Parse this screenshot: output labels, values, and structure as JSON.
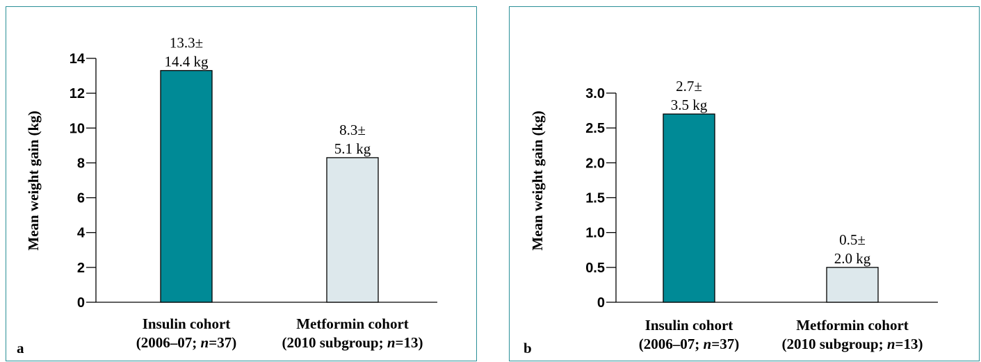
{
  "colors": {
    "frame": "#2a8f97",
    "insulin_bar": "#008a96",
    "metformin_bar": "#dde8ec",
    "axis": "#000000"
  },
  "chart_data": [
    {
      "type": "bar",
      "panel_label": "a",
      "ylabel": "Mean weight gain (kg)",
      "ylim": [
        0,
        14
      ],
      "yticks": [
        "0",
        "2",
        "4",
        "6",
        "8",
        "10",
        "12",
        "14"
      ],
      "yticks_values": [
        0,
        2,
        4,
        6,
        8,
        10,
        12,
        14
      ],
      "categories": [
        {
          "line1": "Insulin cohort",
          "line2_pre": "(2006–07; ",
          "line2_n": "n",
          "line2_post": "=37)"
        },
        {
          "line1": "Metformin cohort",
          "line2_pre": "(2010 subgroup; ",
          "line2_n": "n",
          "line2_post": "=13)"
        }
      ],
      "values": [
        13.3,
        8.3
      ],
      "bar_labels": [
        {
          "line1": "13.3±",
          "line2": "14.4 kg"
        },
        {
          "line1": "8.3±",
          "line2": "5.1 kg"
        }
      ],
      "bar_colors": [
        "#008a96",
        "#dde8ec"
      ]
    },
    {
      "type": "bar",
      "panel_label": "b",
      "ylabel": "Mean weight gain (kg)",
      "ylim": [
        0,
        3.0
      ],
      "yticks": [
        "0",
        "0.5",
        "1.0",
        "1.5",
        "2.0",
        "2.5",
        "3.0"
      ],
      "yticks_values": [
        0,
        0.5,
        1.0,
        1.5,
        2.0,
        2.5,
        3.0
      ],
      "categories": [
        {
          "line1": "Insulin cohort",
          "line2_pre": "(2006–07; ",
          "line2_n": "n",
          "line2_post": "=37)"
        },
        {
          "line1": "Metformin cohort",
          "line2_pre": "(2010 subgroup; ",
          "line2_n": "n",
          "line2_post": "=13)"
        }
      ],
      "values": [
        2.7,
        0.5
      ],
      "bar_labels": [
        {
          "line1": "2.7±",
          "line2": "3.5 kg"
        },
        {
          "line1": "0.5±",
          "line2": "2.0 kg"
        }
      ],
      "bar_colors": [
        "#008a96",
        "#dde8ec"
      ]
    }
  ]
}
